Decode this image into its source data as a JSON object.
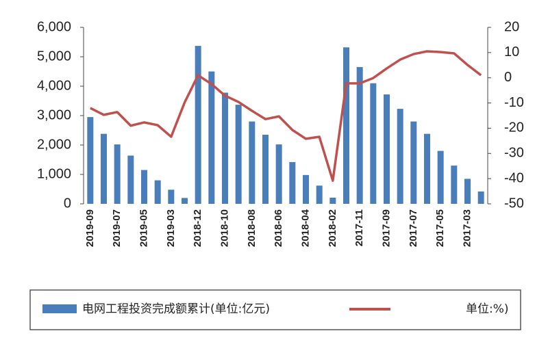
{
  "chart_data": {
    "type": "bar-line",
    "categories": [
      "2019-09",
      null,
      "2019-07",
      null,
      "2019-05",
      null,
      "2019-03",
      null,
      "2018-12",
      null,
      "2018-10",
      null,
      "2018-08",
      null,
      "2018-06",
      null,
      "2018-04",
      null,
      "2018-02",
      null,
      "2017-11",
      null,
      "2017-09",
      null,
      "2017-07",
      null,
      "2017-05",
      null,
      "2017-03",
      null
    ],
    "series": [
      {
        "name": "电网工程投资完成额累计(单位:亿元)",
        "type": "bar",
        "color": "#4a7ebb",
        "values": [
          2950,
          2380,
          2020,
          1640,
          1150,
          800,
          480,
          200,
          5370,
          4500,
          3780,
          3370,
          2800,
          2350,
          2020,
          1420,
          980,
          620,
          210,
          5320,
          4650,
          4100,
          3720,
          3230,
          2800,
          2380,
          1800,
          1300,
          850,
          420
        ]
      },
      {
        "name": "单位:%)",
        "type": "line",
        "axis": "y2",
        "color": "#c0504d",
        "values": [
          -12,
          -14.7,
          -13.6,
          -19,
          -17.7,
          -18.8,
          -23.4,
          -9.8,
          1,
          -2.5,
          -7.1,
          -9.6,
          -13.1,
          -16.4,
          -15.3,
          -20.7,
          -24.2,
          -23.4,
          -40.8,
          -2.2,
          -2.2,
          -0.1,
          3.7,
          7.2,
          9.4,
          10.5,
          10.2,
          9.7,
          5.1,
          1
        ]
      }
    ],
    "ylim": [
      0,
      6000
    ],
    "yticks": [
      0,
      {
        "value": 1000,
        "label": "1,000"
      },
      {
        "value": 2000,
        "label": "2,000"
      },
      {
        "value": 3000,
        "label": "3,000"
      },
      {
        "value": 4000,
        "label": "4,000"
      },
      {
        "value": 5000,
        "label": "5,000"
      },
      {
        "value": 6000,
        "label": "6,000"
      }
    ],
    "y2lim": [
      -50,
      20
    ],
    "y2ticks": [
      -50,
      -40,
      -30,
      -20,
      -10,
      0,
      10,
      20
    ],
    "grid": false
  }
}
